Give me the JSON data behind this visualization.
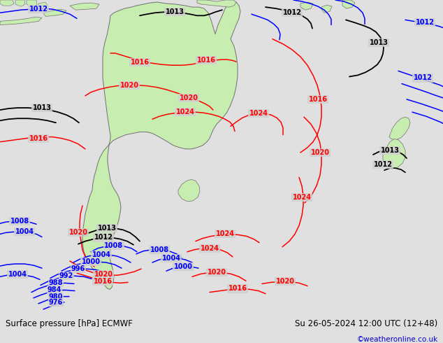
{
  "title_left": "Surface pressure [hPa] ECMWF",
  "title_right": "Su 26-05-2024 12:00 UTC (12+48)",
  "watermark": "©weatheronline.co.uk",
  "bg_color": "#d8d8d8",
  "map_bg_color": "#d0d0d0",
  "land_color": "#c8edb0",
  "aus_land_color": "#c8edb0",
  "fig_width": 6.34,
  "fig_height": 4.9,
  "dpi": 100,
  "bar_color": "#e0e0e0"
}
